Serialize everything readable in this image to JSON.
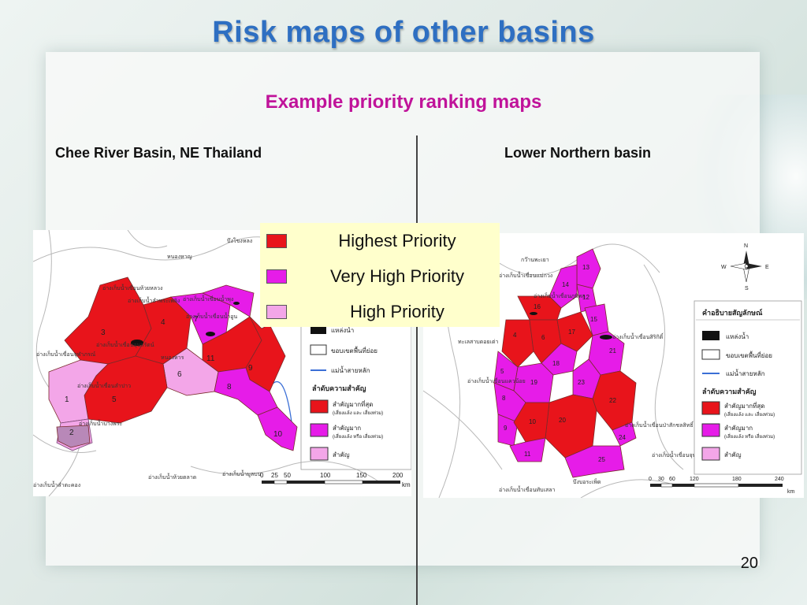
{
  "slide": {
    "title": "Risk maps of other basins",
    "subtitle": "Example priority ranking maps",
    "left_label": "Chee River Basin, NE Thailand",
    "right_label": "Lower Northern basin",
    "page_number": "20"
  },
  "legend": {
    "items": [
      {
        "label": "Highest Priority",
        "color": "#e8141b"
      },
      {
        "label": "Very High Priority",
        "color": "#e61ce8"
      },
      {
        "label": "High Priority",
        "color": "#f3a6e8"
      }
    ]
  },
  "left_map": {
    "scale_ticks": [
      "0",
      "25",
      "50",
      "100",
      "150",
      "200"
    ],
    "scale_unit": "km",
    "legend_title": "ลำดับความสำคัญ",
    "legend_items": [
      {
        "label": "สำคัญมากที่สุด",
        "note": "(เสี่ยงแล้ง และ เสี่ยงท่วม)",
        "color": "#e8141b"
      },
      {
        "label": "สำคัญมาก",
        "note": "(เสี่ยงแล้ง หรือ เสี่ยงท่วม)",
        "color": "#e61ce8"
      },
      {
        "label": "สำคัญ",
        "note": "",
        "color": "#f3a6e8"
      }
    ],
    "symbol_items": [
      "แหล่งน้ำ",
      "ขอบเขตพื้นที่ย่อย",
      "แม่น้ำสายหลัก"
    ],
    "zone_numbers": [
      "1",
      "2",
      "3",
      "4",
      "5",
      "6",
      "7",
      "8",
      "9",
      "10",
      "11"
    ],
    "place_labels": [
      "บึงโขงหลง",
      "หนองหาญ",
      "อ่างเก็บน้ำเขื่อนห้วยหลวง",
      "อ่างเก็บน้ำเขื่อนจุฬาภรณ์",
      "อ่างเก็บน้ำเขื่อนอุบลรัตน์",
      "หนองหาร",
      "อ่างเก็บน้ำลำตะคอง",
      "อ่างเก็บน้ำมูลบน",
      "อ่างเก็บน้ำลำพระเพลิง",
      "อ่างเก็บน้ำห้วยตลาด",
      "อ่างเก็บน้ำเขื่อนลำปาว",
      "อ่างเก็บน้ำเขื่อนน้ำพุง",
      "อ่างเก็บน้ำเขื่อนน้ำอูน",
      "อ่างเก็บน้ำบางพระ"
    ]
  },
  "right_map": {
    "scale_ticks": [
      "0",
      "30",
      "60",
      "120",
      "180",
      "240"
    ],
    "scale_unit": "km",
    "legend_header": "คำอธิบายสัญลักษณ์",
    "legend_title": "ลำดับความสำคัญ",
    "legend_items": [
      {
        "label": "สำคัญมากที่สุด",
        "note": "(เสี่ยงแล้ง และ เสี่ยงท่วม)",
        "color": "#e8141b"
      },
      {
        "label": "สำคัญมาก",
        "note": "(เสี่ยงแล้ง หรือ เสี่ยงท่วม)",
        "color": "#e61ce8"
      },
      {
        "label": "สำคัญ",
        "note": "",
        "color": "#f3a6e8"
      }
    ],
    "symbol_items": [
      "แหล่งน้ำ",
      "ขอบเขตพื้นที่ย่อย",
      "แม่น้ำสายหลัก"
    ],
    "compass": [
      "N",
      "S",
      "E",
      "W"
    ],
    "zone_numbers": [
      "4",
      "5",
      "6",
      "8",
      "9",
      "10",
      "11",
      "12",
      "13",
      "14",
      "15",
      "16",
      "17",
      "18",
      "19",
      "20",
      "21",
      "22",
      "23",
      "24",
      "25"
    ],
    "place_labels": [
      "กว๊านพะเยา",
      "อ่างเก็บน้ำเขื่อนแม่กวง",
      "อ่างเก็บน้ำเขื่อนสิริกิติ์",
      "อ่างเก็บน้ำเขื่อนภูมิพล",
      "ทะเลสาบดอยเต่า",
      "อ่างเก็บน้ำเขื่อนแควน้อย",
      "อ่างเก็บน้ำเขื่อนป่าสักชลสิทธิ์",
      "อ่างเก็บน้ำเขื่อนจุฬาภรณ์",
      "บึงบอระเพ็ด",
      "อ่างเก็บน้ำเขื่อนทับเสลา"
    ]
  }
}
